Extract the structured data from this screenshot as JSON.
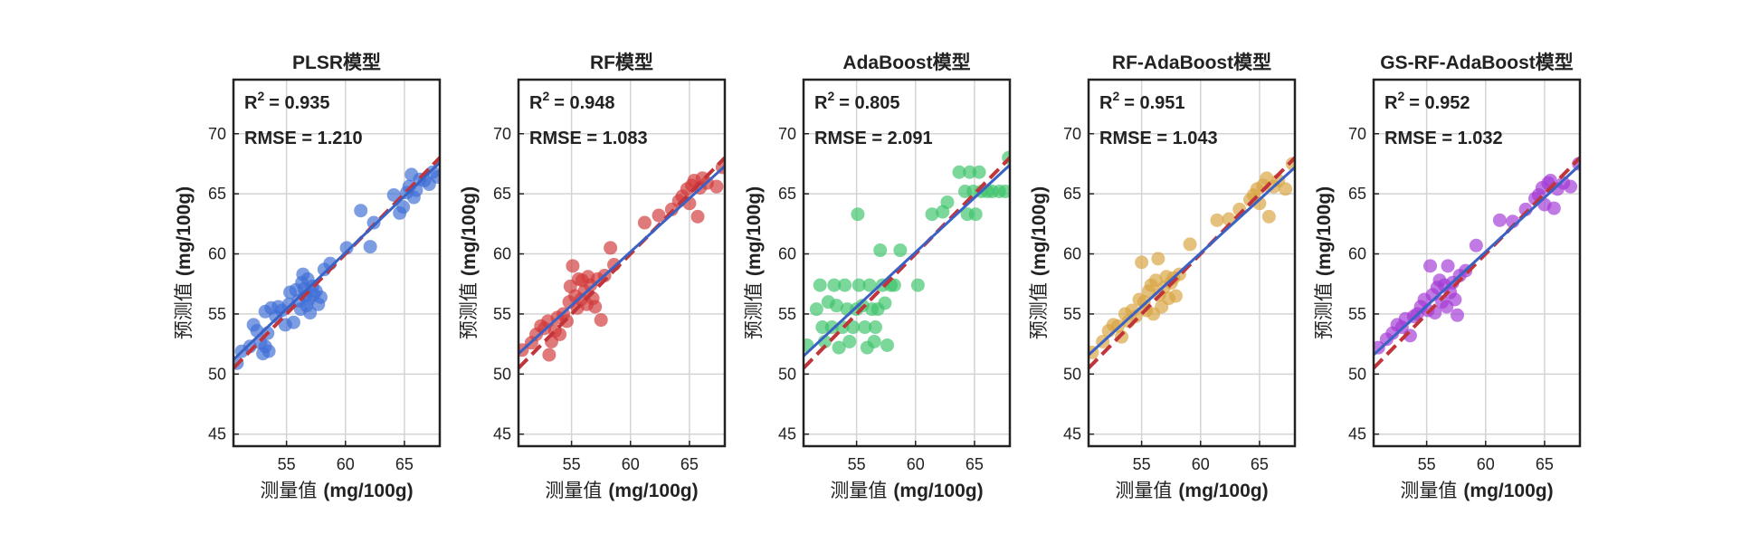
{
  "figure": {
    "style": {
      "fit_color": "#3a62c4",
      "ideal_color": "#c0343a"
    }
  },
  "chart_data": [
    {
      "type": "scatter",
      "title": "PLSR模型",
      "xlabel_cn": "测量值",
      "xlabel_unit": "(mg/100g)",
      "ylabel_cn": "预测值",
      "ylabel_unit": "(mg/100g)",
      "xlim": [
        50.5,
        68
      ],
      "ylim": [
        44,
        74.5
      ],
      "xticks": [
        55,
        60,
        65
      ],
      "yticks": [
        45,
        50,
        55,
        60,
        65,
        70
      ],
      "grid": true,
      "r2_label": "R",
      "r2_sup": "2",
      "r2_value": "= 0.935",
      "rmse_text": "RMSE = 1.210",
      "color": "#3f6fd6",
      "fit_line": [
        [
          50.5,
          51.2
        ],
        [
          68,
          67.6
        ]
      ],
      "ideal_line": [
        [
          50.5,
          50.5
        ],
        [
          68,
          68
        ]
      ],
      "points": [
        [
          50.8,
          50.9
        ],
        [
          51.2,
          51.9
        ],
        [
          51.9,
          52.3
        ],
        [
          52.2,
          54.1
        ],
        [
          52.5,
          53.6
        ],
        [
          52.8,
          52.6
        ],
        [
          53.0,
          51.7
        ],
        [
          53.2,
          52.3
        ],
        [
          53.4,
          53.4
        ],
        [
          53.5,
          51.9
        ],
        [
          53.2,
          55.2
        ],
        [
          53.7,
          55.5
        ],
        [
          54.1,
          54.8
        ],
        [
          54.3,
          55.6
        ],
        [
          54.6,
          55.3
        ],
        [
          54.9,
          54.1
        ],
        [
          55.2,
          55.8
        ],
        [
          55.3,
          56.8
        ],
        [
          55.6,
          54.3
        ],
        [
          55.8,
          57.0
        ],
        [
          56.0,
          56.1
        ],
        [
          56.2,
          55.4
        ],
        [
          56.3,
          57.6
        ],
        [
          56.4,
          58.3
        ],
        [
          56.5,
          57.1
        ],
        [
          56.6,
          56.5
        ],
        [
          56.7,
          55.7
        ],
        [
          56.8,
          57.9
        ],
        [
          56.9,
          56.2
        ],
        [
          57.0,
          55.1
        ],
        [
          57.2,
          57.3
        ],
        [
          57.3,
          56.6
        ],
        [
          57.5,
          56.9
        ],
        [
          57.7,
          55.8
        ],
        [
          57.9,
          56.4
        ],
        [
          58.2,
          58.7
        ],
        [
          58.7,
          59.2
        ],
        [
          60.1,
          60.5
        ],
        [
          61.3,
          63.6
        ],
        [
          62.1,
          60.6
        ],
        [
          62.4,
          62.6
        ],
        [
          64.1,
          64.9
        ],
        [
          64.6,
          63.4
        ],
        [
          64.9,
          63.9
        ],
        [
          65.2,
          65.1
        ],
        [
          65.4,
          65.6
        ],
        [
          65.6,
          66.6
        ],
        [
          65.8,
          64.7
        ],
        [
          66.0,
          65.3
        ],
        [
          66.3,
          66.2
        ],
        [
          66.7,
          66.1
        ],
        [
          67.1,
          65.8
        ],
        [
          67.4,
          66.8
        ],
        [
          67.8,
          66.4
        ]
      ]
    },
    {
      "type": "scatter",
      "title": "RF模型",
      "xlabel_cn": "测量值",
      "xlabel_unit": "(mg/100g)",
      "ylabel_cn": "预测值",
      "ylabel_unit": "(mg/100g)",
      "xlim": [
        50.5,
        68
      ],
      "ylim": [
        44,
        74.5
      ],
      "xticks": [
        55,
        60,
        65
      ],
      "yticks": [
        45,
        50,
        55,
        60,
        65,
        70
      ],
      "grid": true,
      "r2_label": "R",
      "r2_sup": "2",
      "r2_value": "= 0.948",
      "rmse_text": "RMSE = 1.083",
      "color": "#d23a3a",
      "fit_line": [
        [
          50.5,
          51.7
        ],
        [
          68,
          67.3
        ]
      ],
      "ideal_line": [
        [
          50.5,
          50.5
        ],
        [
          68,
          68
        ]
      ],
      "points": [
        [
          50.8,
          52.0
        ],
        [
          51.6,
          52.6
        ],
        [
          52.0,
          53.3
        ],
        [
          52.4,
          54.0
        ],
        [
          52.7,
          53.8
        ],
        [
          53.0,
          54.4
        ],
        [
          53.1,
          51.6
        ],
        [
          53.3,
          52.7
        ],
        [
          53.6,
          53.6
        ],
        [
          53.8,
          54.7
        ],
        [
          54.0,
          53.3
        ],
        [
          54.3,
          55.0
        ],
        [
          54.6,
          54.4
        ],
        [
          54.8,
          56.0
        ],
        [
          54.9,
          57.3
        ],
        [
          55.1,
          59.0
        ],
        [
          55.3,
          56.5
        ],
        [
          55.5,
          55.5
        ],
        [
          55.6,
          57.9
        ],
        [
          55.8,
          56.2
        ],
        [
          55.9,
          57.8
        ],
        [
          56.1,
          56.9
        ],
        [
          56.3,
          55.8
        ],
        [
          56.4,
          58.1
        ],
        [
          56.6,
          57.4
        ],
        [
          56.8,
          56.3
        ],
        [
          57.0,
          55.6
        ],
        [
          57.2,
          57.9
        ],
        [
          57.5,
          54.5
        ],
        [
          57.8,
          58.2
        ],
        [
          58.3,
          60.5
        ],
        [
          58.6,
          59.1
        ],
        [
          61.2,
          62.6
        ],
        [
          62.4,
          63.2
        ],
        [
          63.5,
          63.7
        ],
        [
          64.1,
          64.4
        ],
        [
          64.4,
          64.8
        ],
        [
          64.8,
          65.4
        ],
        [
          65.0,
          64.2
        ],
        [
          65.2,
          65.7
        ],
        [
          65.4,
          66.1
        ],
        [
          65.7,
          63.1
        ],
        [
          65.9,
          65.5
        ],
        [
          66.1,
          66.3
        ],
        [
          66.5,
          65.9
        ],
        [
          67.3,
          65.6
        ],
        [
          67.8,
          67.2
        ]
      ]
    },
    {
      "type": "scatter",
      "title": "AdaBoost模型",
      "xlabel_cn": "测量值",
      "xlabel_unit": "(mg/100g)",
      "ylabel_cn": "预测值",
      "ylabel_unit": "(mg/100g)",
      "xlim": [
        50.5,
        68
      ],
      "ylim": [
        44,
        74.5
      ],
      "xticks": [
        55,
        60,
        65
      ],
      "yticks": [
        45,
        50,
        55,
        60,
        65,
        70
      ],
      "grid": true,
      "r2_label": "R",
      "r2_sup": "2",
      "r2_value": "= 0.805",
      "rmse_text": "RMSE = 2.091",
      "color": "#3cc46a",
      "fit_line": [
        [
          50.5,
          51.5
        ],
        [
          68,
          67.4
        ]
      ],
      "ideal_line": [
        [
          50.5,
          50.5
        ],
        [
          68,
          68
        ]
      ],
      "points": [
        [
          50.8,
          52.4
        ],
        [
          51.6,
          55.4
        ],
        [
          51.9,
          57.4
        ],
        [
          52.1,
          53.9
        ],
        [
          52.3,
          52.7
        ],
        [
          52.6,
          56.0
        ],
        [
          52.9,
          53.9
        ],
        [
          53.1,
          57.4
        ],
        [
          53.3,
          55.7
        ],
        [
          53.5,
          52.2
        ],
        [
          53.8,
          53.9
        ],
        [
          54.0,
          57.4
        ],
        [
          54.2,
          55.4
        ],
        [
          54.4,
          52.7
        ],
        [
          54.7,
          53.9
        ],
        [
          55.0,
          55.4
        ],
        [
          55.2,
          57.4
        ],
        [
          55.1,
          63.3
        ],
        [
          55.5,
          55.7
        ],
        [
          55.7,
          53.9
        ],
        [
          55.9,
          52.2
        ],
        [
          56.1,
          57.4
        ],
        [
          56.3,
          55.4
        ],
        [
          56.5,
          52.7
        ],
        [
          56.6,
          53.9
        ],
        [
          56.8,
          55.4
        ],
        [
          57.0,
          60.3
        ],
        [
          57.2,
          57.4
        ],
        [
          57.4,
          55.9
        ],
        [
          57.6,
          52.4
        ],
        [
          57.9,
          57.4
        ],
        [
          58.2,
          57.4
        ],
        [
          58.7,
          60.3
        ],
        [
          60.2,
          57.4
        ],
        [
          61.4,
          63.3
        ],
        [
          62.3,
          63.5
        ],
        [
          62.7,
          64.3
        ],
        [
          63.7,
          66.8
        ],
        [
          64.2,
          65.2
        ],
        [
          64.4,
          63.3
        ],
        [
          64.6,
          66.8
        ],
        [
          64.9,
          65.2
        ],
        [
          65.1,
          63.3
        ],
        [
          65.4,
          66.8
        ],
        [
          65.6,
          65.2
        ],
        [
          66.1,
          65.2
        ],
        [
          66.5,
          65.2
        ],
        [
          67.1,
          65.2
        ],
        [
          67.6,
          65.2
        ],
        [
          67.9,
          68.0
        ]
      ]
    },
    {
      "type": "scatter",
      "title": "RF-AdaBoost模型",
      "xlabel_cn": "测量值",
      "xlabel_unit": "(mg/100g)",
      "ylabel_cn": "预测值",
      "ylabel_unit": "(mg/100g)",
      "xlim": [
        50.5,
        68
      ],
      "ylim": [
        44,
        74.5
      ],
      "xticks": [
        55,
        60,
        65
      ],
      "yticks": [
        45,
        50,
        55,
        60,
        65,
        70
      ],
      "grid": true,
      "r2_label": "R",
      "r2_sup": "2",
      "r2_value": "= 0.951",
      "rmse_text": "RMSE = 1.043",
      "color": "#d9a441",
      "fit_line": [
        [
          50.5,
          51.6
        ],
        [
          68,
          67.2
        ]
      ],
      "ideal_line": [
        [
          50.5,
          50.5
        ],
        [
          68,
          68
        ]
      ],
      "points": [
        [
          50.8,
          51.8
        ],
        [
          51.7,
          52.7
        ],
        [
          52.2,
          53.6
        ],
        [
          52.6,
          54.1
        ],
        [
          53.0,
          54.0
        ],
        [
          53.3,
          53.1
        ],
        [
          53.6,
          55.0
        ],
        [
          53.9,
          54.4
        ],
        [
          54.2,
          55.3
        ],
        [
          54.5,
          54.8
        ],
        [
          54.8,
          56.2
        ],
        [
          55.0,
          59.3
        ],
        [
          55.2,
          56.0
        ],
        [
          55.4,
          55.3
        ],
        [
          55.6,
          56.9
        ],
        [
          55.8,
          57.4
        ],
        [
          56.0,
          55.0
        ],
        [
          56.2,
          57.8
        ],
        [
          56.4,
          59.6
        ],
        [
          56.5,
          56.6
        ],
        [
          56.7,
          55.6
        ],
        [
          56.9,
          57.2
        ],
        [
          57.1,
          58.1
        ],
        [
          57.3,
          56.3
        ],
        [
          57.5,
          57.6
        ],
        [
          57.7,
          58.0
        ],
        [
          57.9,
          56.5
        ],
        [
          58.2,
          58.3
        ],
        [
          59.1,
          60.8
        ],
        [
          61.4,
          62.8
        ],
        [
          62.4,
          62.9
        ],
        [
          63.3,
          63.7
        ],
        [
          64.2,
          64.5
        ],
        [
          64.5,
          64.9
        ],
        [
          64.8,
          65.4
        ],
        [
          65.0,
          64.2
        ],
        [
          65.3,
          65.7
        ],
        [
          65.6,
          66.3
        ],
        [
          65.8,
          63.1
        ],
        [
          66.2,
          65.6
        ],
        [
          66.6,
          66.1
        ],
        [
          67.2,
          65.4
        ],
        [
          67.8,
          67.5
        ]
      ]
    },
    {
      "type": "scatter",
      "title": "GS-RF-AdaBoost模型",
      "xlabel_cn": "测量值",
      "xlabel_unit": "(mg/100g)",
      "ylabel_cn": "预测值",
      "ylabel_unit": "(mg/100g)",
      "xlim": [
        50.5,
        68
      ],
      "ylim": [
        44,
        74.5
      ],
      "xticks": [
        55,
        60,
        65
      ],
      "yticks": [
        45,
        50,
        55,
        60,
        65,
        70
      ],
      "grid": true,
      "r2_label": "R",
      "r2_sup": "2",
      "r2_value": "= 0.952",
      "rmse_text": "RMSE = 1.032",
      "color": "#a33ad6",
      "fit_line": [
        [
          50.5,
          51.6
        ],
        [
          68,
          67.4
        ]
      ],
      "ideal_line": [
        [
          50.5,
          50.5
        ],
        [
          68,
          68
        ]
      ],
      "points": [
        [
          50.9,
          52.2
        ],
        [
          51.6,
          52.9
        ],
        [
          52.1,
          53.4
        ],
        [
          52.5,
          54.1
        ],
        [
          52.9,
          53.9
        ],
        [
          53.2,
          54.6
        ],
        [
          53.6,
          53.2
        ],
        [
          53.9,
          54.8
        ],
        [
          54.2,
          55.0
        ],
        [
          54.5,
          55.6
        ],
        [
          54.8,
          56.2
        ],
        [
          55.1,
          55.3
        ],
        [
          55.3,
          59.0
        ],
        [
          55.5,
          56.6
        ],
        [
          55.7,
          55.1
        ],
        [
          55.9,
          57.2
        ],
        [
          56.1,
          57.8
        ],
        [
          56.3,
          56.0
        ],
        [
          56.5,
          57.4
        ],
        [
          56.7,
          55.6
        ],
        [
          56.8,
          59.0
        ],
        [
          57.0,
          56.8
        ],
        [
          57.2,
          57.6
        ],
        [
          57.4,
          56.2
        ],
        [
          57.6,
          54.9
        ],
        [
          57.8,
          58.2
        ],
        [
          58.3,
          58.6
        ],
        [
          59.2,
          60.7
        ],
        [
          61.2,
          62.8
        ],
        [
          62.3,
          62.7
        ],
        [
          63.4,
          63.7
        ],
        [
          64.2,
          64.6
        ],
        [
          64.5,
          64.9
        ],
        [
          64.8,
          65.5
        ],
        [
          65.0,
          64.1
        ],
        [
          65.3,
          65.9
        ],
        [
          65.5,
          66.1
        ],
        [
          65.8,
          63.8
        ],
        [
          66.1,
          65.4
        ],
        [
          66.6,
          65.9
        ],
        [
          67.2,
          65.6
        ],
        [
          67.9,
          67.5
        ]
      ]
    }
  ]
}
